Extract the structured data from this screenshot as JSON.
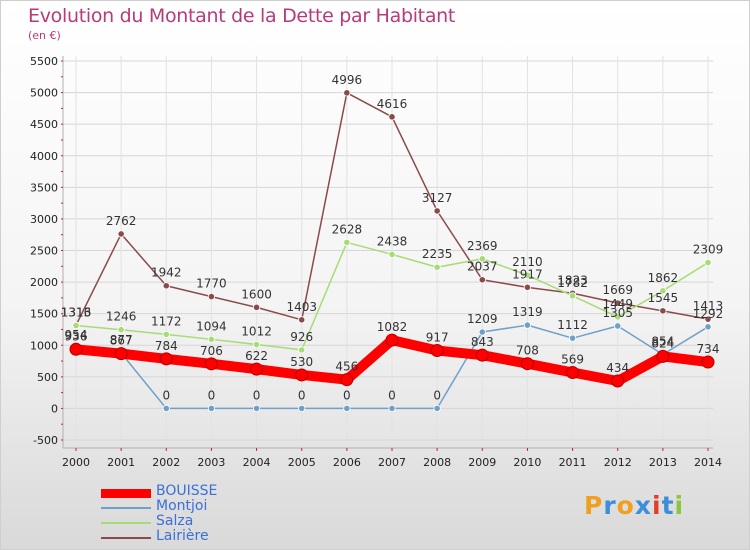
{
  "chart_data": {
    "type": "line",
    "title": "Evolution du Montant de la Dette par Habitant",
    "subtitle": "(en €)",
    "xlabel": "",
    "ylabel": "",
    "x": [
      "2000",
      "2001",
      "2002",
      "2003",
      "2004",
      "2005",
      "2006",
      "2007",
      "2008",
      "2009",
      "2010",
      "2011",
      "2012",
      "2013",
      "2014"
    ],
    "ylim": [
      -500,
      5500
    ],
    "yticks": [
      -500,
      0,
      500,
      1000,
      1500,
      2000,
      2500,
      3000,
      3500,
      4000,
      4500,
      5000,
      5500
    ],
    "grid": true,
    "legend_position": "bottom-left",
    "series": [
      {
        "name": "BOUISSE",
        "color": "#ff0000",
        "values": [
          936,
          867,
          784,
          706,
          622,
          530,
          456,
          1082,
          917,
          843,
          708,
          569,
          434,
          824,
          734
        ]
      },
      {
        "name": "Montjoi",
        "color": "#6fa0c8",
        "values": [
          954,
          877,
          0,
          0,
          0,
          0,
          0,
          0,
          0,
          1209,
          1319,
          1112,
          1305,
          854,
          1292
        ]
      },
      {
        "name": "Salza",
        "color": "#a6dc74",
        "values": [
          1313,
          1246,
          1172,
          1094,
          1012,
          926,
          2628,
          2438,
          2235,
          2369,
          2110,
          1782,
          1449,
          1862,
          2309
        ]
      },
      {
        "name": "Lairière",
        "color": "#8b4a4a",
        "values": [
          1316,
          2762,
          1942,
          1770,
          1600,
          1403,
          4996,
          4616,
          3127,
          2037,
          1917,
          1823,
          1669,
          1545,
          1413
        ]
      }
    ]
  },
  "logo": {
    "text": "Proxiti",
    "letter_colors": [
      "#f0a020",
      "#3b8fd9",
      "#f0a020",
      "#3b8fd9",
      "#e0402a",
      "#3b8fd9",
      "#8cc63f"
    ]
  }
}
